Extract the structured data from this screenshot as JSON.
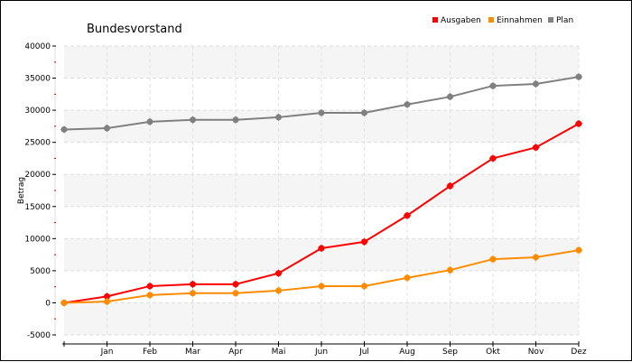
{
  "chart_data": {
    "type": "line",
    "title": "Bundesvorstand",
    "xlabel": "",
    "ylabel": "Betrag",
    "categories": [
      "",
      "Jan",
      "Feb",
      "Mar",
      "Apr",
      "Mai",
      "Jun",
      "Jul",
      "Aug",
      "Sep",
      "Okt",
      "Nov",
      "Dez"
    ],
    "ylim": [
      -5000,
      40000
    ],
    "yticks": [
      -5000,
      0,
      5000,
      10000,
      15000,
      20000,
      25000,
      30000,
      35000,
      40000
    ],
    "ytick_labels": [
      "-5000",
      "0",
      "5000",
      "10000",
      "15000",
      "20000",
      "25000",
      "30000",
      "35000",
      "40000"
    ],
    "grid": true,
    "legend_position": "top-right",
    "series": [
      {
        "name": "Ausgaben",
        "color": "#ff0000",
        "values": [
          0,
          1000,
          2600,
          2900,
          2900,
          4600,
          8500,
          9500,
          13600,
          18200,
          22500,
          24200,
          27900
        ]
      },
      {
        "name": "Einnahmen",
        "color": "#ff8c00",
        "values": [
          0,
          200,
          1200,
          1500,
          1500,
          1900,
          2600,
          2600,
          3900,
          5100,
          6800,
          7100,
          8200
        ]
      },
      {
        "name": "Plan",
        "color": "#808080",
        "values": [
          27000,
          27200,
          28200,
          28500,
          28500,
          28900,
          29600,
          29600,
          30900,
          32100,
          33800,
          34100,
          35200
        ]
      }
    ]
  }
}
